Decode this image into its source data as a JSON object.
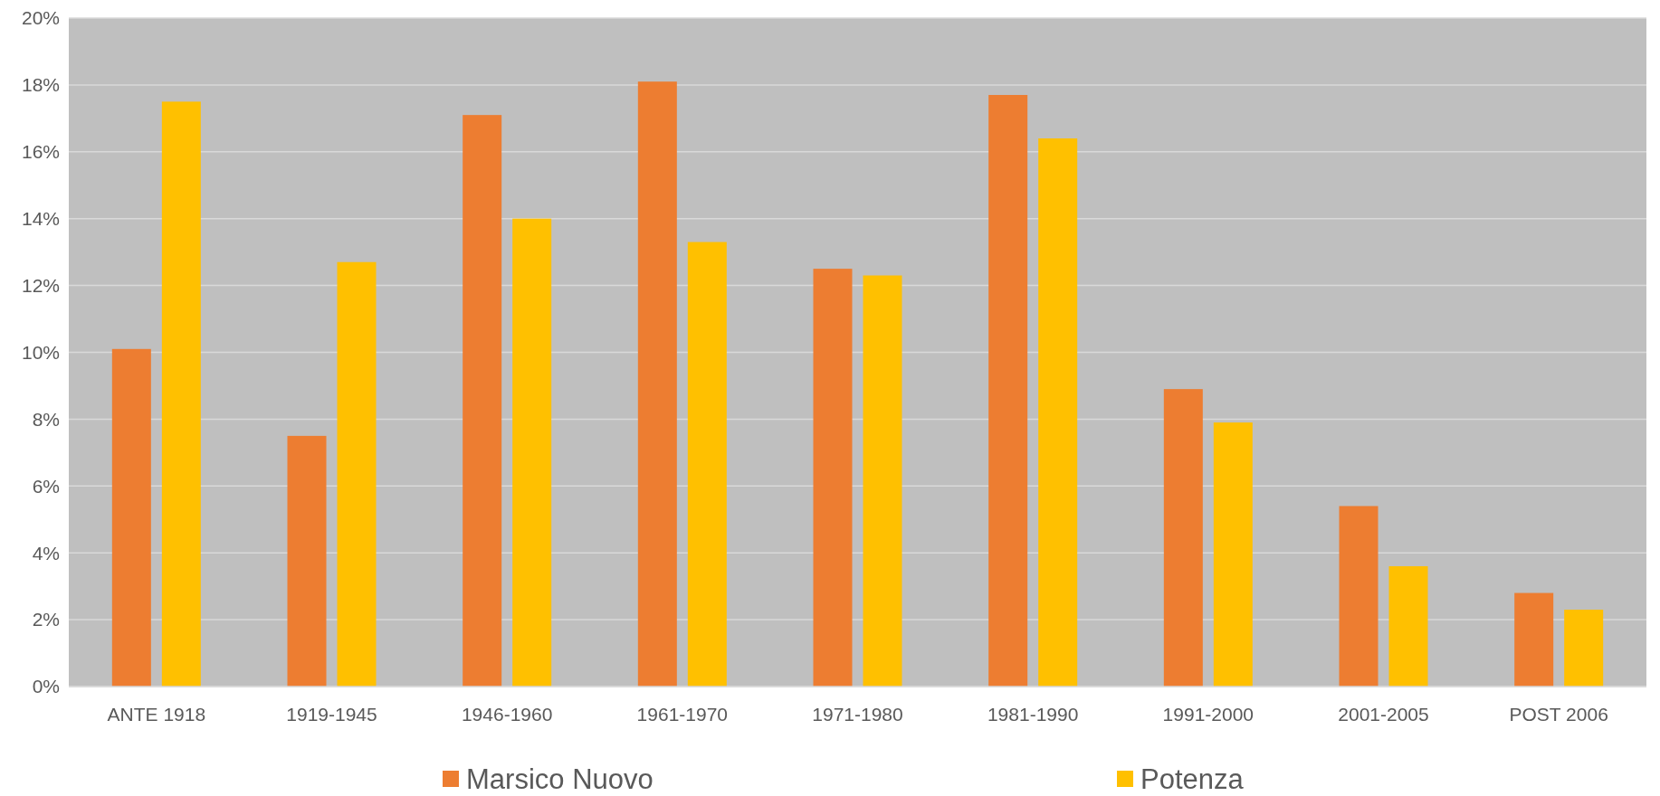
{
  "chart_data": {
    "type": "bar",
    "categories": [
      "ANTE 1918",
      "1919-1945",
      "1946-1960",
      "1961-1970",
      "1971-1980",
      "1981-1990",
      "1991-2000",
      "2001-2005",
      "POST 2006"
    ],
    "series": [
      {
        "name": "Marsico Nuovo",
        "color": "#ed7d31",
        "values": [
          10.1,
          7.5,
          17.1,
          18.1,
          12.5,
          17.7,
          8.9,
          5.4,
          2.8
        ]
      },
      {
        "name": "Potenza",
        "color": "#ffc000",
        "values": [
          17.5,
          12.7,
          14.0,
          13.3,
          12.3,
          16.4,
          7.9,
          3.6,
          2.3
        ]
      }
    ],
    "ylim": [
      0,
      20
    ],
    "yticks": [
      {
        "value": 0,
        "label": "0%"
      },
      {
        "value": 2,
        "label": "2%"
      },
      {
        "value": 4,
        "label": "4%"
      },
      {
        "value": 6,
        "label": "6%"
      },
      {
        "value": 8,
        "label": "8%"
      },
      {
        "value": 10,
        "label": "10%"
      },
      {
        "value": 12,
        "label": "12%"
      },
      {
        "value": 14,
        "label": "14%"
      },
      {
        "value": 16,
        "label": "16%"
      },
      {
        "value": 18,
        "label": "18%"
      },
      {
        "value": 20,
        "label": "20%"
      }
    ],
    "grid": "y",
    "legend": "bottom"
  }
}
